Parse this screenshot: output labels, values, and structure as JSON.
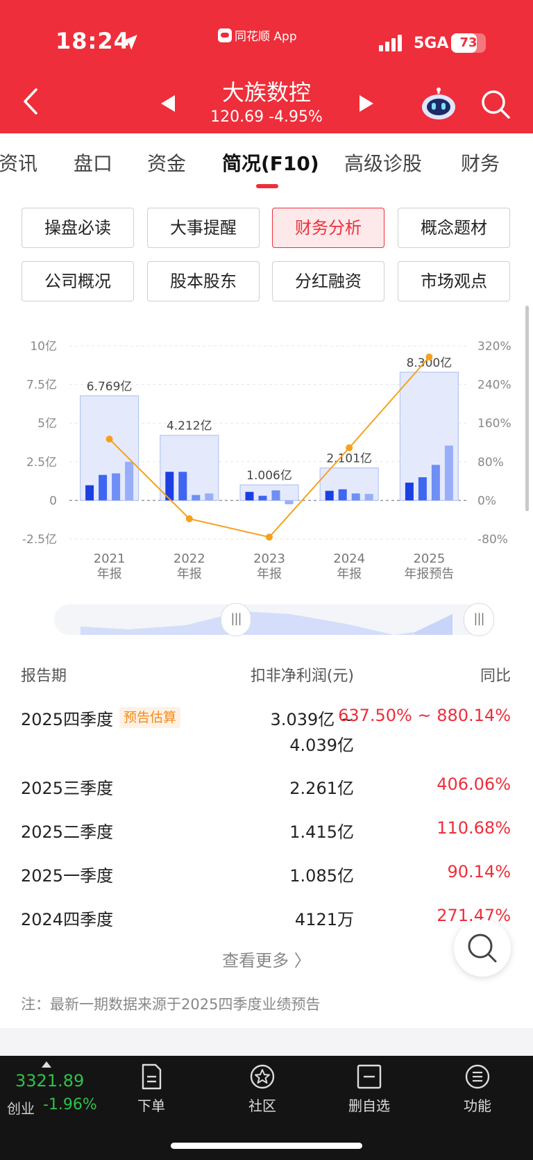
{
  "status_bar": {
    "time": "18:24",
    "app_name": "同花顺 App",
    "network": "5GA",
    "battery": "73",
    "battery_level": 0.73
  },
  "header": {
    "stock_name": "大族数控",
    "price_line": "120.69 -4.95%"
  },
  "tabs": [
    "资讯",
    "盘口",
    "资金",
    "简况(F10)",
    "高级诊股",
    "财务"
  ],
  "active_tab": "简况(F10)",
  "sub_buttons": [
    "操盘必读",
    "大事提醒",
    "财务分析",
    "概念题材",
    "公司概况",
    "股本股东",
    "分红融资",
    "市场观点"
  ],
  "active_sub_button": "财务分析",
  "chart_data": {
    "type": "bar",
    "categories": [
      "2021\n年报",
      "2022\n年报",
      "2023\n年报",
      "2024\n年报",
      "2025\n年报预告"
    ],
    "category_lines": [
      [
        "2021",
        "年报"
      ],
      [
        "2022",
        "年报"
      ],
      [
        "2023",
        "年报"
      ],
      [
        "2024",
        "年报"
      ],
      [
        "2025",
        "年报预告"
      ]
    ],
    "annual_values": [
      6.769,
      4.212,
      1.006,
      2.101,
      8.3
    ],
    "annual_labels": [
      "6.769亿",
      "4.212亿",
      "1.006亿",
      "2.101亿",
      "8.300亿"
    ],
    "quarterly_values": [
      [
        0.98,
        1.65,
        1.75,
        2.5
      ],
      [
        1.85,
        1.85,
        0.35,
        0.45
      ],
      [
        0.55,
        0.3,
        0.65,
        -0.25
      ],
      [
        0.62,
        0.72,
        0.45,
        0.42
      ],
      [
        1.15,
        1.5,
        2.3,
        3.55
      ]
    ],
    "yoy_values": [
      127,
      -38,
      -76,
      109,
      297
    ],
    "left_axis": {
      "ticks": [
        10,
        7.5,
        5,
        2.5,
        0,
        -2.5
      ],
      "labels": [
        "10亿",
        "7.5亿",
        "5亿",
        "2.5亿",
        "0",
        "-2.5亿"
      ],
      "ylim": [
        -2.5,
        10
      ]
    },
    "right_axis": {
      "ticks": [
        320,
        240,
        160,
        80,
        0,
        -80
      ],
      "labels": [
        "320%",
        "240%",
        "160%",
        "80%",
        "0%",
        "-80%"
      ],
      "ylim": [
        -80,
        320
      ]
    },
    "grid": true,
    "colors": {
      "annual_fill": "#e4eafc",
      "annual_border": "#b5c6f5",
      "q1": "#1b3fe0",
      "q2": "#3f66f0",
      "q3": "#6f8ff6",
      "q4": "#98aef8",
      "line": "#f5a11c"
    }
  },
  "table": {
    "headers": [
      "报告期",
      "扣非净利润(元)",
      "同比"
    ],
    "rows": [
      {
        "period": "2025四季度",
        "badge": "预告估算",
        "value_line1": "3.039亿 ~",
        "value_line2": "4.039亿",
        "yoy": "637.50% ~ 880.14%"
      },
      {
        "period": "2025三季度",
        "value_line1": "2.261亿",
        "yoy": "406.06%"
      },
      {
        "period": "2025二季度",
        "value_line1": "1.415亿",
        "yoy": "110.68%"
      },
      {
        "period": "2025一季度",
        "value_line1": "1.085亿",
        "yoy": "90.14%"
      },
      {
        "period": "2024四季度",
        "value_line1": "4121万",
        "yoy": "271.47%"
      }
    ],
    "more_label": "查看更多 〉",
    "note": "注：最新一期数据来源于2025四季度业绩预告"
  },
  "bottom_bar": {
    "index_value": "3321.89",
    "index_name": "创业",
    "index_change": "-1.96%",
    "items": [
      {
        "label": "下单",
        "icon": "document-icon"
      },
      {
        "label": "社区",
        "icon": "community-star-icon"
      },
      {
        "label": "删自选",
        "icon": "remove-watchlist-icon"
      },
      {
        "label": "功能",
        "icon": "menu-circle-icon"
      }
    ]
  }
}
